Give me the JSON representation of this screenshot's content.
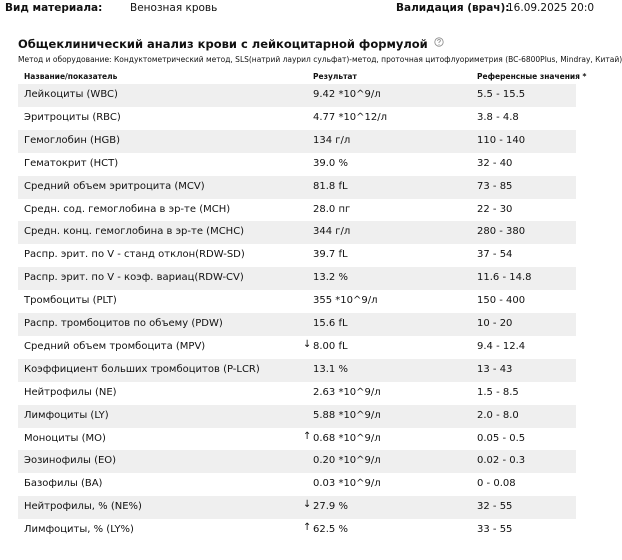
{
  "header": {
    "material_label": "Вид материала:",
    "material": "Венозная кровь",
    "validation_label": "Валидация (врач):",
    "validation": "16.09.2025 20:0"
  },
  "section": {
    "title": "Общеклинический анализ крови с лейкоцитарной формулой",
    "method": "Метод и оборудование: Кондуктометрический метод, SLS(натрий лаурил сульфат)-метод, проточная цитофлуориметрия (BC-6800Plus, Mindray, Китай)"
  },
  "table": {
    "columns": [
      "Название/показатель",
      "Результат",
      "Референсные значения *"
    ],
    "rows": [
      {
        "name": "Лейкоциты (WBC)",
        "result": "9.42 *10^9/л",
        "ref": "5.5 - 15.5"
      },
      {
        "name": "Эритроциты (RBC)",
        "result": "4.77 *10^12/л",
        "ref": "3.8 - 4.8"
      },
      {
        "name": "Гемоглобин (HGB)",
        "result": "134 г/л",
        "ref": "110 - 140"
      },
      {
        "name": "Гематокрит (HCT)",
        "result": "39.0 %",
        "ref": "32 - 40"
      },
      {
        "name": "Средний объем эритроцита (MCV)",
        "result": "81.8 fL",
        "ref": "73 - 85"
      },
      {
        "name": "Средн. сод. гемоглобина в эр-те (MCH)",
        "result": "28.0 пг",
        "ref": "22 - 30"
      },
      {
        "name": "Средн. конц. гемоглобина в эр-те (MCHC)",
        "result": "344 г/л",
        "ref": "280 - 380"
      },
      {
        "name": "Распр. эрит. по V - станд отклон(RDW-SD)",
        "result": "39.7 fL",
        "ref": "37 - 54"
      },
      {
        "name": "Распр. эрит. по V - коэф. вариац(RDW-CV)",
        "result": "13.2 %",
        "ref": "11.6 - 14.8"
      },
      {
        "name": "Тромбоциты (PLT)",
        "result": "355 *10^9/л",
        "ref": "150 - 400"
      },
      {
        "name": "Распр. тромбоцитов по объему (PDW)",
        "result": "15.6 fL",
        "ref": "10 - 20"
      },
      {
        "name": "Средний объем тромбоцита (MPV)",
        "flag": "↓",
        "result": "8.00 fL",
        "ref": "9.4 - 12.4"
      },
      {
        "name": "Коэффициент больших тромбоцитов (P-LCR)",
        "result": "13.1 %",
        "ref": "13 - 43"
      },
      {
        "name": "Нейтрофилы (NE)",
        "result": "2.63 *10^9/л",
        "ref": "1.5 - 8.5"
      },
      {
        "name": "Лимфоциты (LY)",
        "result": "5.88 *10^9/л",
        "ref": "2.0 - 8.0"
      },
      {
        "name": "Моноциты (MO)",
        "flag": "↑",
        "result": "0.68 *10^9/л",
        "ref": "0.05 - 0.5"
      },
      {
        "name": "Эозинофилы (EO)",
        "result": "0.20 *10^9/л",
        "ref": "0.02 - 0.3"
      },
      {
        "name": "Базофилы (BA)",
        "result": "0.03 *10^9/л",
        "ref": "0 - 0.08"
      },
      {
        "name": "Нейтрофилы, % (NE%)",
        "flag": "↓",
        "result": "27.9 %",
        "ref": "32 - 55"
      },
      {
        "name": "Лимфоциты, % (LY%)",
        "flag": "↑",
        "result": "62.5 %",
        "ref": "33 - 55"
      }
    ]
  }
}
